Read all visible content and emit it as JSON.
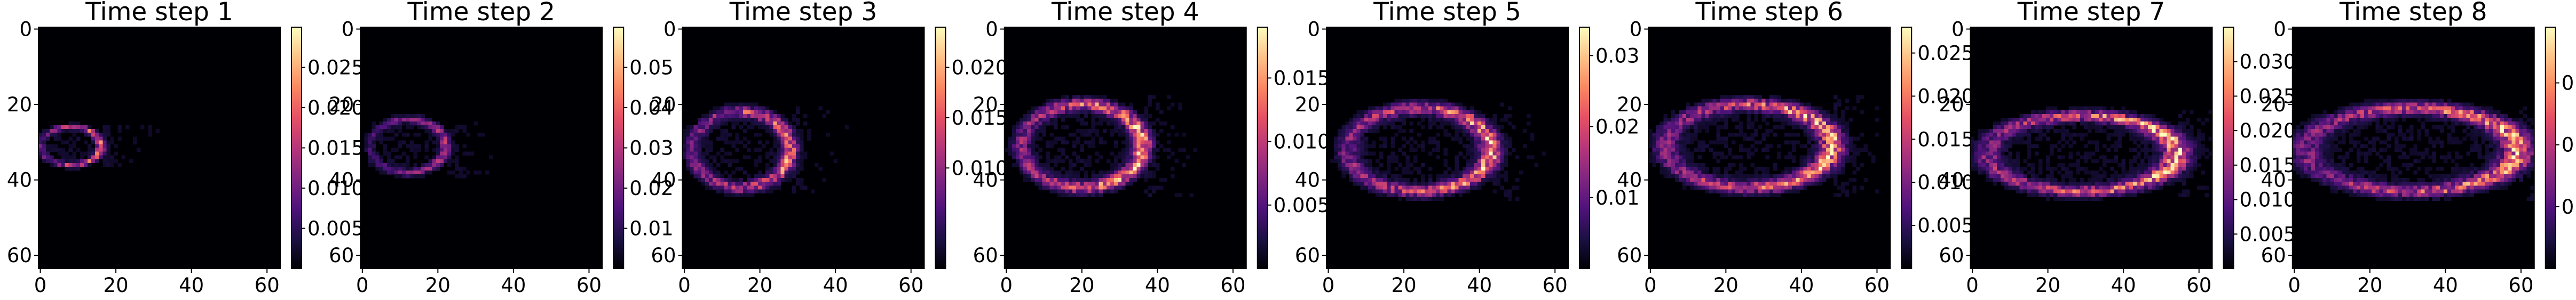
{
  "figure": {
    "colormap": "magma",
    "background": "#ffffff"
  },
  "chart_data": [
    {
      "type": "heatmap",
      "title": "Time step 1",
      "grid_size": 64,
      "xlim": [
        0,
        63
      ],
      "ylim": [
        63,
        0
      ],
      "xticks": [
        "0",
        "20",
        "40",
        "60"
      ],
      "yticks": [
        "0",
        "20",
        "40",
        "60"
      ],
      "colorbar": {
        "min": 0,
        "max": 0.03,
        "ticks": [
          "0.005",
          "0.010",
          "0.015",
          "0.020",
          "0.025"
        ],
        "tick_values": [
          0.005,
          0.01,
          0.015,
          0.02,
          0.025
        ]
      },
      "ring": {
        "cx": 8,
        "cy": 31,
        "rx": 8,
        "ry": 5,
        "peak_x": 15,
        "intensity": 0.65
      }
    },
    {
      "type": "heatmap",
      "title": "Time step 2",
      "grid_size": 64,
      "xlim": [
        0,
        63
      ],
      "ylim": [
        63,
        0
      ],
      "xticks": [
        "0",
        "20",
        "40",
        "60"
      ],
      "yticks": [
        "0",
        "20",
        "40",
        "60"
      ],
      "colorbar": {
        "min": 0,
        "max": 0.06,
        "ticks": [
          "0.01",
          "0.02",
          "0.03",
          "0.04",
          "0.05"
        ],
        "tick_values": [
          0.01,
          0.02,
          0.03,
          0.04,
          0.05
        ]
      },
      "ring": {
        "cx": 12,
        "cy": 31,
        "rx": 10,
        "ry": 7,
        "peak_x": 22,
        "intensity": 0.45
      }
    },
    {
      "type": "heatmap",
      "title": "Time step 3",
      "grid_size": 64,
      "xlim": [
        0,
        63
      ],
      "ylim": [
        63,
        0
      ],
      "xticks": [
        "0",
        "20",
        "40",
        "60"
      ],
      "yticks": [
        "0",
        "20",
        "40",
        "60"
      ],
      "colorbar": {
        "min": 0,
        "max": 0.024,
        "ticks": [
          "0.010",
          "0.015",
          "0.020"
        ],
        "tick_values": [
          0.01,
          0.015,
          0.02
        ]
      },
      "ring": {
        "cx": 15,
        "cy": 32,
        "rx": 13,
        "ry": 10,
        "peak_x": 26,
        "intensity": 0.75
      }
    },
    {
      "type": "heatmap",
      "title": "Time step 4",
      "grid_size": 64,
      "xlim": [
        0,
        63
      ],
      "ylim": [
        63,
        0
      ],
      "xticks": [
        "0",
        "20",
        "40",
        "60"
      ],
      "yticks": [
        "0",
        "20",
        "40",
        "60"
      ],
      "colorbar": {
        "min": 0,
        "max": 0.019,
        "ticks": [
          "0.005",
          "0.010",
          "0.015"
        ],
        "tick_values": [
          0.005,
          0.01,
          0.015
        ]
      },
      "ring": {
        "cx": 20,
        "cy": 31,
        "rx": 16,
        "ry": 11,
        "peak_x": 36,
        "intensity": 0.85
      }
    },
    {
      "type": "heatmap",
      "title": "Time step 5",
      "grid_size": 64,
      "xlim": [
        0,
        63
      ],
      "ylim": [
        63,
        0
      ],
      "xticks": [
        "0",
        "20",
        "40",
        "60"
      ],
      "yticks": [
        "0",
        "20",
        "40",
        "60"
      ],
      "colorbar": {
        "min": 0,
        "max": 0.034,
        "ticks": [
          "0.01",
          "0.02",
          "0.03"
        ],
        "tick_values": [
          0.01,
          0.02,
          0.03
        ]
      },
      "ring": {
        "cx": 24,
        "cy": 32,
        "rx": 19,
        "ry": 11,
        "peak_x": 42,
        "intensity": 0.8
      }
    },
    {
      "type": "heatmap",
      "title": "Time step 6",
      "grid_size": 64,
      "xlim": [
        0,
        63
      ],
      "ylim": [
        63,
        0
      ],
      "xticks": [
        "0",
        "20",
        "40",
        "60"
      ],
      "yticks": [
        "0",
        "20",
        "40",
        "60"
      ],
      "colorbar": {
        "min": 0,
        "max": 0.028,
        "ticks": [
          "0.005",
          "0.010",
          "0.015",
          "0.020",
          "0.025"
        ],
        "tick_values": [
          0.005,
          0.01,
          0.015,
          0.02,
          0.025
        ]
      },
      "ring": {
        "cx": 26,
        "cy": 31,
        "rx": 22,
        "ry": 11,
        "peak_x": 48,
        "intensity": 0.85
      }
    },
    {
      "type": "heatmap",
      "title": "Time step 7",
      "grid_size": 64,
      "xlim": [
        0,
        63
      ],
      "ylim": [
        63,
        0
      ],
      "xticks": [
        "0",
        "20",
        "40",
        "60"
      ],
      "yticks": [
        "0",
        "20",
        "40",
        "60"
      ],
      "colorbar": {
        "min": 0,
        "max": 0.035,
        "ticks": [
          "0.005",
          "0.010",
          "0.015",
          "0.020",
          "0.025",
          "0.030"
        ],
        "tick_values": [
          0.005,
          0.01,
          0.015,
          0.02,
          0.025,
          0.03
        ]
      },
      "ring": {
        "cx": 29,
        "cy": 33,
        "rx": 25,
        "ry": 10,
        "peak_x": 53,
        "intensity": 0.85
      }
    },
    {
      "type": "heatmap",
      "title": "Time step 8",
      "grid_size": 64,
      "xlim": [
        0,
        63
      ],
      "ylim": [
        63,
        0
      ],
      "xticks": [
        "0",
        "20",
        "40",
        "60"
      ],
      "yticks": [
        "0",
        "20",
        "40",
        "60"
      ],
      "colorbar": {
        "min": 0,
        "max": 0.039,
        "ticks": [
          "0.01",
          "0.02",
          "0.03"
        ],
        "tick_values": [
          0.01,
          0.02,
          0.03
        ]
      },
      "ring": {
        "cx": 31,
        "cy": 32,
        "rx": 28,
        "ry": 11,
        "peak_x": 59,
        "intensity": 0.8
      }
    }
  ]
}
